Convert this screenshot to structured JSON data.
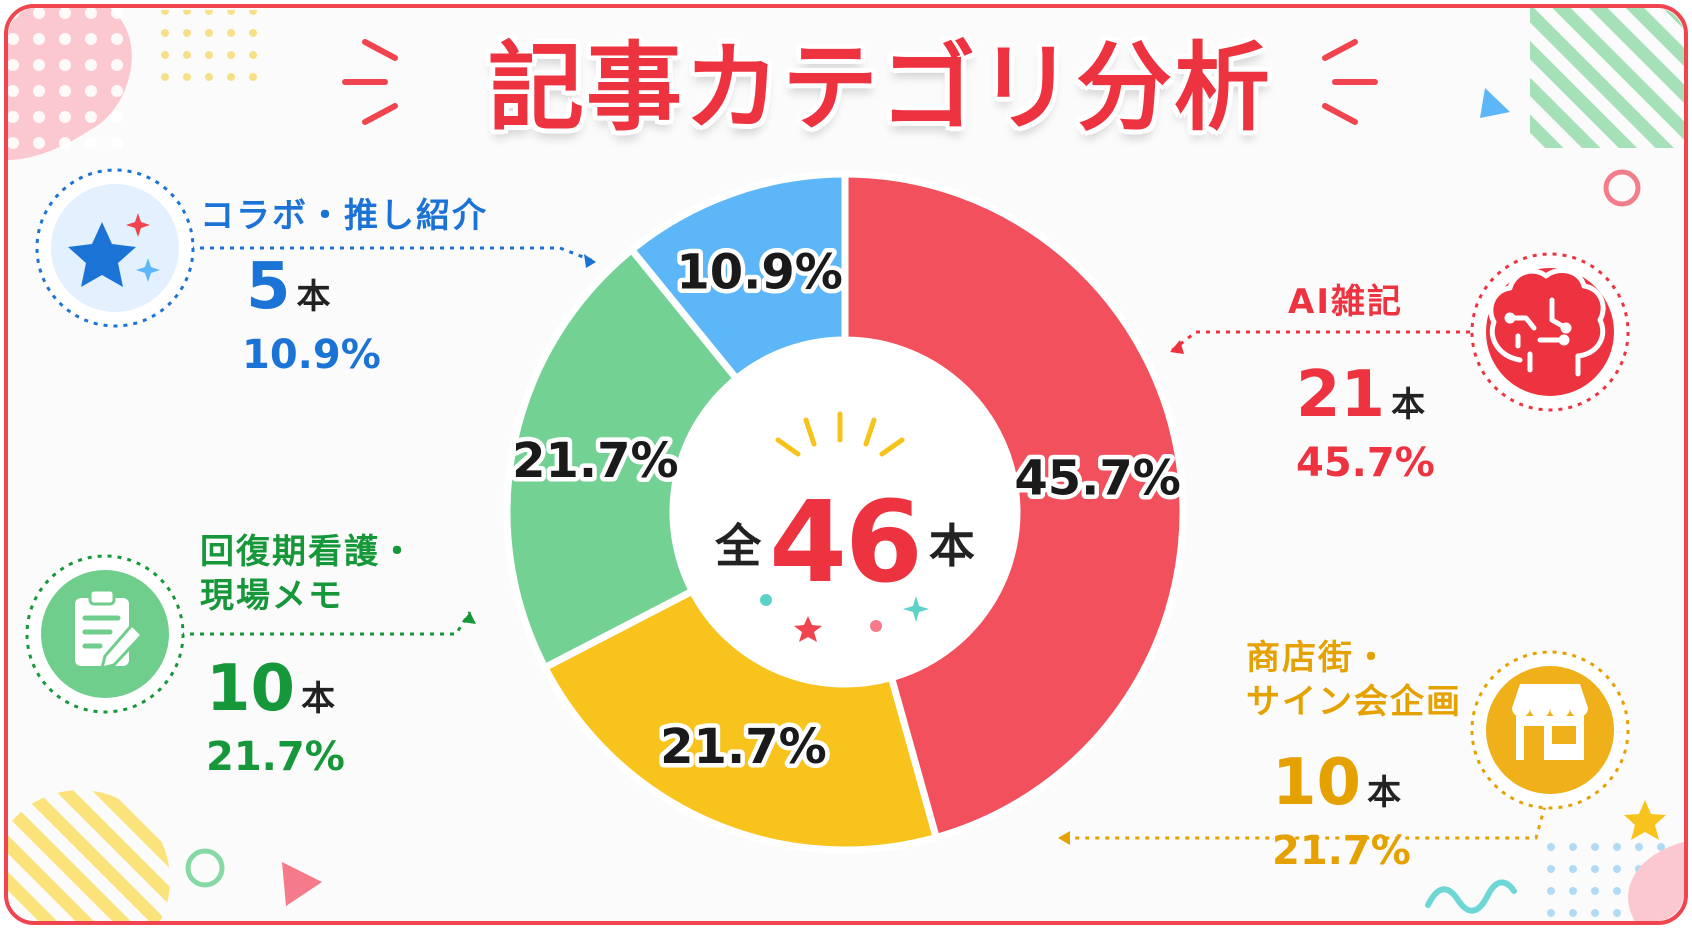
{
  "title": "記事カテゴリ分析",
  "center": {
    "prefix": "全",
    "total": "46",
    "suffix": "本"
  },
  "unit": "本",
  "chart_data": {
    "type": "pie",
    "title": "記事カテゴリ分析",
    "total": 46,
    "slices": [
      {
        "name": "AI雑記",
        "value": 21,
        "percent": 45.7,
        "label": "45.7%",
        "color": "#f2505d"
      },
      {
        "name": "商店街・サイン会企画",
        "value": 10,
        "percent": 21.7,
        "label": "21.7%",
        "color": "#f8c31d"
      },
      {
        "name": "回復期看護・現場メモ",
        "value": 10,
        "percent": 21.7,
        "label": "21.7%",
        "color": "#74d194"
      },
      {
        "name": "コラボ・推し紹介",
        "value": 5,
        "percent": 10.9,
        "label": "10.9%",
        "color": "#5cb6f8"
      }
    ]
  },
  "categories": {
    "collab": {
      "name": "コラボ・推し紹介",
      "count": "5",
      "pct": "10.9%",
      "icon": "star-icon",
      "color": "#1c73d6"
    },
    "ai": {
      "name": "AI雑記",
      "count": "21",
      "pct": "45.7%",
      "icon": "brain-icon",
      "color": "#ee3340"
    },
    "nursing": {
      "name_line1": "回復期看護・",
      "name_line2": "現場メモ",
      "count": "10",
      "pct": "21.7%",
      "icon": "clipboard-icon",
      "color": "#16973a"
    },
    "shop": {
      "name_line1": "商店街・",
      "name_line2": "サイン会企画",
      "count": "10",
      "pct": "21.7%",
      "icon": "shop-icon",
      "color": "#e5a100"
    }
  }
}
